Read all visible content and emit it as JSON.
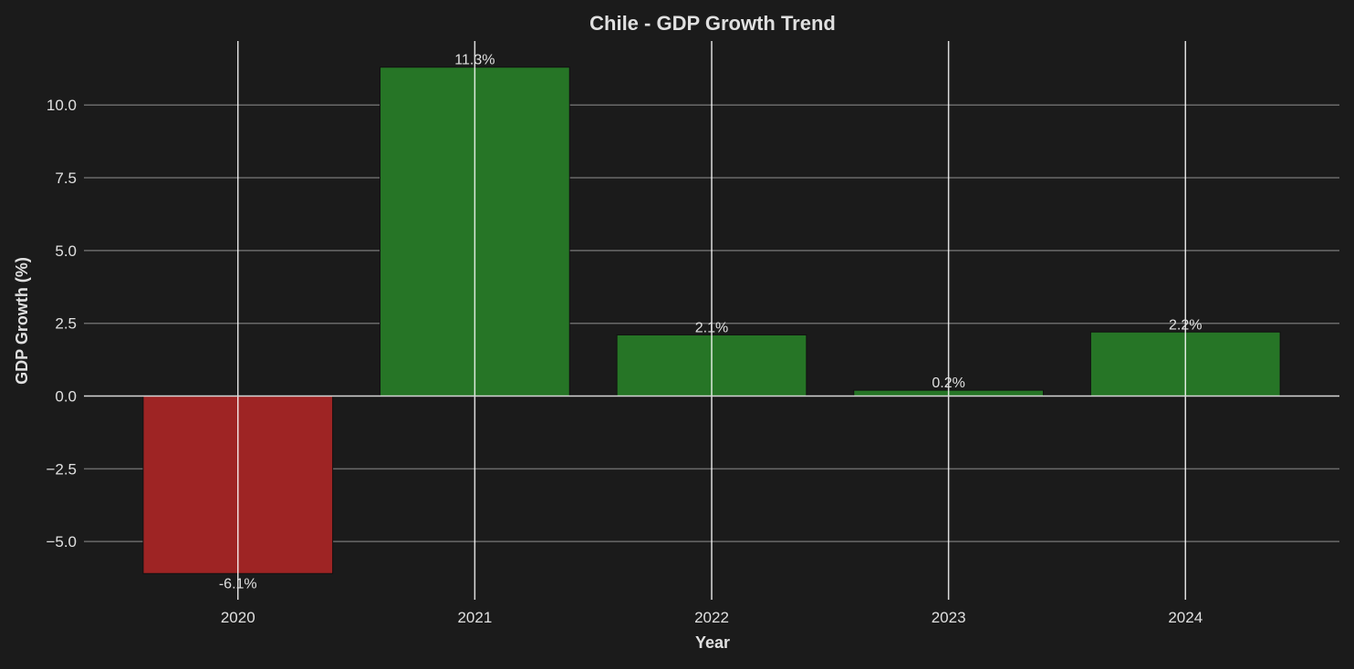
{
  "chart_data": {
    "type": "bar",
    "title": "Chile - GDP Growth Trend",
    "xlabel": "Year",
    "ylabel": "GDP Growth (%)",
    "categories": [
      "2020",
      "2021",
      "2022",
      "2023",
      "2024"
    ],
    "values": [
      -6.1,
      11.3,
      2.1,
      0.2,
      2.2
    ],
    "data_labels": [
      "-6.1%",
      "11.3%",
      "2.1%",
      "0.2%",
      "2.2%"
    ],
    "yticks": [
      -5.0,
      -2.5,
      0.0,
      2.5,
      5.0,
      7.5,
      10.0
    ],
    "ytick_labels": [
      "−5.0",
      "−2.5",
      "0.0",
      "2.5",
      "5.0",
      "7.5",
      "10.0"
    ],
    "ylim": [
      -7.0,
      12.2
    ],
    "grid": true,
    "colors": {
      "positive": "#267526",
      "negative": "#9e2424",
      "background": "#1b1b1b",
      "text": "#e0e0e0"
    }
  }
}
